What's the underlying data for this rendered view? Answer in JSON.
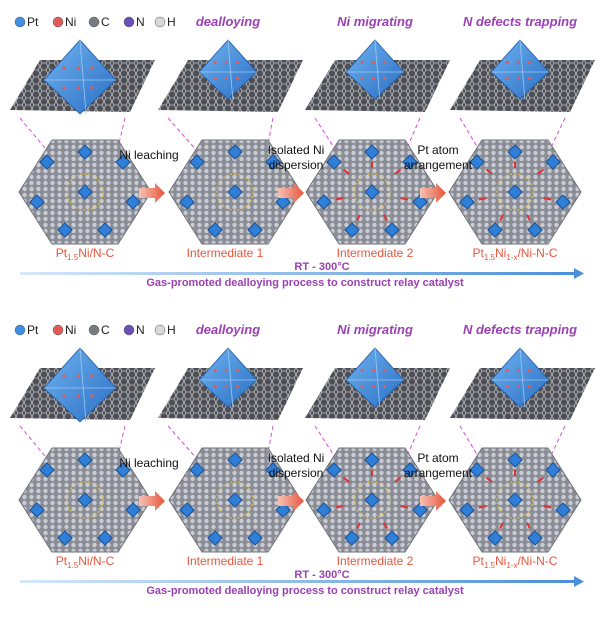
{
  "panels": [
    {
      "legend": [
        "Pt",
        "Ni",
        "C",
        "N",
        "H"
      ],
      "stage_titles": [
        "dealloying",
        "Ni migrating",
        "N defects trapping"
      ],
      "steps": [
        [
          "Ni leaching"
        ],
        [
          "Isolated Ni",
          "dispersion"
        ],
        [
          "Pt atom",
          "arrangement"
        ]
      ],
      "stages": [
        [
          "Pt",
          "1.5",
          "Ni/N-C"
        ],
        [
          "Intermediate 1"
        ],
        [
          "Intermediate 2"
        ],
        [
          "Pt",
          "1.5",
          "Ni",
          "1-x",
          "/Ni-N-C"
        ]
      ],
      "temperature": "RT - 300°C",
      "caption": "Gas-promoted dealloying process to construct relay catalyst"
    },
    {
      "legend": [
        "Pt",
        "Ni",
        "C",
        "N",
        "H"
      ],
      "stage_titles": [
        "dealloying",
        "Ni migrating",
        "N defects trapping"
      ],
      "steps": [
        [
          "Ni leaching"
        ],
        [
          "Isolated Ni",
          "dispersion"
        ],
        [
          "Pt atom",
          "arrangement"
        ]
      ],
      "stages": [
        [
          "Pt",
          "1.5",
          "Ni/N-C"
        ],
        [
          "Intermediate 1"
        ],
        [
          "Intermediate 2"
        ],
        [
          "Pt",
          "1.5",
          "Ni",
          "1-x",
          "/Ni-N-C"
        ]
      ],
      "temperature": "RT - 300°C",
      "caption": "Gas-promoted dealloying process to construct relay catalyst"
    }
  ]
}
